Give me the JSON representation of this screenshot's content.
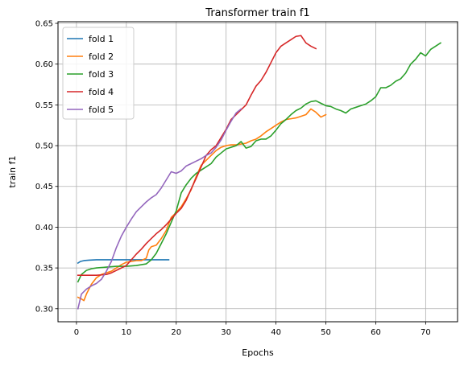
{
  "chart_data": {
    "type": "line",
    "title": "Transformer train f1",
    "xlabel": "Epochs",
    "ylabel": "train f1",
    "xlim": [
      -3.7,
      76.4
    ],
    "ylim": [
      0.284,
      0.652
    ],
    "xticks": [
      0,
      10,
      20,
      30,
      40,
      50,
      60,
      70
    ],
    "yticks": [
      0.3,
      0.35,
      0.4,
      0.45,
      0.5,
      0.55,
      0.6,
      0.65
    ],
    "xtick_labels": [
      "0",
      "10",
      "20",
      "30",
      "40",
      "50",
      "60",
      "70"
    ],
    "ytick_labels": [
      "0.30",
      "0.35",
      "0.40",
      "0.45",
      "0.50",
      "0.55",
      "0.60",
      "0.65"
    ],
    "grid": true,
    "legend_position": "upper-left",
    "series": [
      {
        "name": "fold 1",
        "color": "#1f77b4",
        "x": [
          0.3,
          0.8,
          1.5,
          2.5,
          4,
          6,
          8,
          10,
          12,
          14,
          16,
          18.5
        ],
        "y": [
          0.356,
          0.358,
          0.359,
          0.3595,
          0.36,
          0.36,
          0.36,
          0.36,
          0.36,
          0.36,
          0.36,
          0.36
        ]
      },
      {
        "name": "fold 2",
        "color": "#ff7f0e",
        "x": [
          0.3,
          1,
          1.5,
          2,
          3,
          4,
          5,
          6,
          7,
          8,
          9,
          10,
          11,
          12,
          13,
          14,
          14.5,
          15,
          16,
          17,
          18,
          19,
          20,
          21,
          22,
          23,
          24,
          25,
          26,
          27,
          28,
          29,
          30,
          31,
          32,
          33,
          34,
          35,
          36,
          37,
          38,
          39,
          40,
          41,
          42,
          43,
          44,
          45,
          46,
          47,
          48,
          49,
          50
        ],
        "y": [
          0.314,
          0.312,
          0.31,
          0.318,
          0.33,
          0.338,
          0.342,
          0.344,
          0.346,
          0.35,
          0.354,
          0.357,
          0.358,
          0.359,
          0.359,
          0.362,
          0.372,
          0.376,
          0.378,
          0.386,
          0.396,
          0.412,
          0.418,
          0.425,
          0.435,
          0.446,
          0.462,
          0.476,
          0.482,
          0.488,
          0.494,
          0.498,
          0.5,
          0.501,
          0.501,
          0.502,
          0.503,
          0.506,
          0.508,
          0.512,
          0.517,
          0.521,
          0.525,
          0.529,
          0.532,
          0.533,
          0.534,
          0.536,
          0.538,
          0.545,
          0.541,
          0.535,
          0.538
        ]
      },
      {
        "name": "fold 3",
        "color": "#2ca02c",
        "x": [
          0.3,
          1,
          2,
          3,
          4,
          6,
          8,
          10,
          12,
          14,
          15,
          16,
          17,
          18,
          19,
          20,
          21,
          22,
          23,
          24,
          25,
          26,
          27,
          28,
          29,
          30,
          31,
          32,
          33,
          34,
          35,
          36,
          37,
          38,
          39,
          40,
          41,
          42,
          43,
          44,
          45,
          46,
          47,
          48,
          49,
          50,
          51,
          52,
          53,
          54,
          55,
          56,
          57,
          58,
          59,
          60,
          61,
          62,
          63,
          64,
          65,
          66,
          67,
          68,
          69,
          70,
          71,
          72,
          73
        ],
        "y": [
          0.333,
          0.342,
          0.347,
          0.349,
          0.35,
          0.351,
          0.352,
          0.352,
          0.353,
          0.355,
          0.36,
          0.368,
          0.38,
          0.392,
          0.406,
          0.42,
          0.442,
          0.452,
          0.46,
          0.466,
          0.47,
          0.474,
          0.478,
          0.486,
          0.491,
          0.496,
          0.498,
          0.5,
          0.505,
          0.497,
          0.499,
          0.506,
          0.508,
          0.508,
          0.512,
          0.519,
          0.527,
          0.532,
          0.538,
          0.543,
          0.546,
          0.551,
          0.554,
          0.555,
          0.552,
          0.549,
          0.548,
          0.545,
          0.543,
          0.54,
          0.545,
          0.547,
          0.549,
          0.551,
          0.555,
          0.56,
          0.571,
          0.571,
          0.574,
          0.579,
          0.582,
          0.589,
          0.6,
          0.606,
          0.614,
          0.61,
          0.618,
          0.622,
          0.626
        ]
      },
      {
        "name": "fold 4",
        "color": "#d62728",
        "x": [
          0.3,
          2,
          4,
          6,
          7,
          8,
          9,
          10,
          11,
          12,
          13,
          14,
          15,
          16,
          17,
          18,
          19,
          20,
          21,
          22,
          23,
          24,
          25,
          26,
          27,
          28,
          29,
          30,
          31,
          32,
          33,
          34,
          35,
          36,
          37,
          38,
          39,
          40,
          41,
          42,
          43,
          44,
          45,
          46,
          47,
          48
        ],
        "y": [
          0.341,
          0.341,
          0.341,
          0.342,
          0.344,
          0.347,
          0.35,
          0.353,
          0.36,
          0.367,
          0.373,
          0.38,
          0.386,
          0.392,
          0.397,
          0.403,
          0.41,
          0.417,
          0.423,
          0.433,
          0.447,
          0.46,
          0.474,
          0.488,
          0.495,
          0.5,
          0.51,
          0.52,
          0.532,
          0.538,
          0.544,
          0.55,
          0.562,
          0.573,
          0.58,
          0.59,
          0.602,
          0.614,
          0.622,
          0.626,
          0.63,
          0.634,
          0.635,
          0.626,
          0.622,
          0.619
        ]
      },
      {
        "name": "fold 5",
        "color": "#9467bd",
        "x": [
          0.3,
          1,
          2,
          3,
          4,
          5,
          6,
          7,
          8,
          9,
          10,
          11,
          12,
          13,
          14,
          15,
          16,
          17,
          18,
          19,
          20,
          21,
          22,
          23,
          24,
          25,
          26,
          27,
          28,
          29,
          30,
          31,
          32,
          33
        ],
        "y": [
          0.3,
          0.318,
          0.324,
          0.328,
          0.331,
          0.336,
          0.346,
          0.358,
          0.375,
          0.389,
          0.4,
          0.41,
          0.419,
          0.425,
          0.431,
          0.436,
          0.44,
          0.448,
          0.458,
          0.468,
          0.466,
          0.469,
          0.475,
          0.478,
          0.481,
          0.484,
          0.488,
          0.491,
          0.498,
          0.507,
          0.519,
          0.53,
          0.54,
          0.545
        ]
      }
    ]
  }
}
